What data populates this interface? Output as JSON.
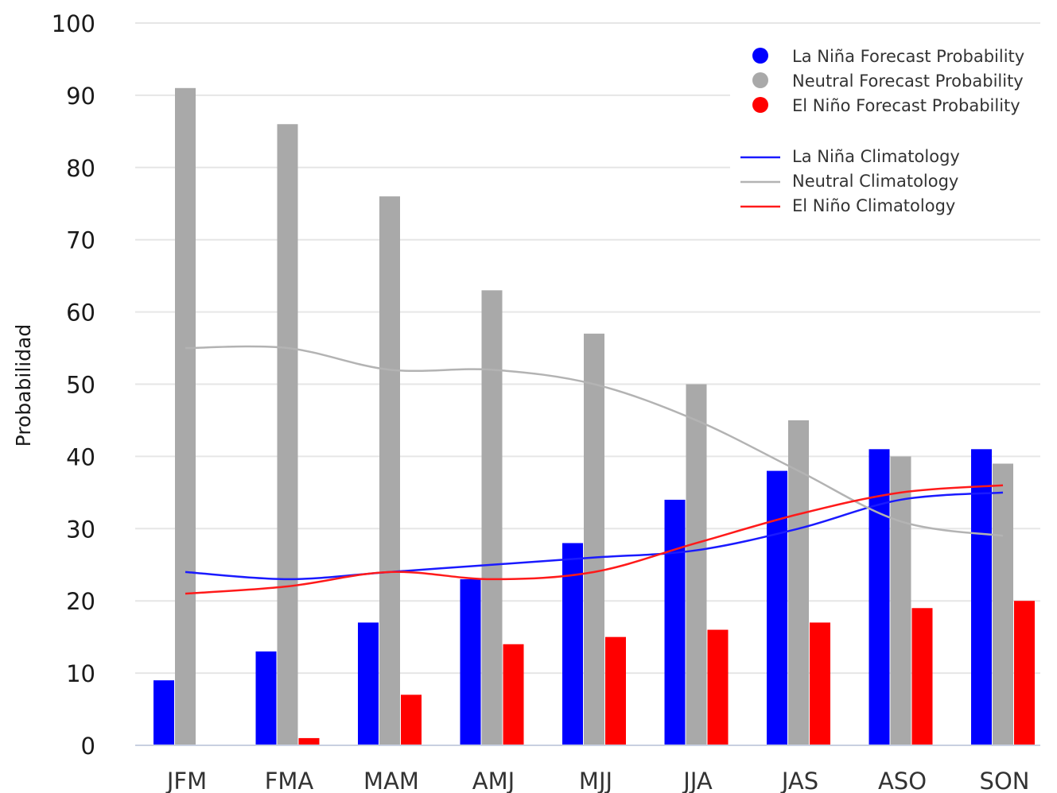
{
  "chart_data": {
    "type": "bar",
    "ylabel": "Probabilidad",
    "xlabel": "",
    "ylim": [
      0,
      100
    ],
    "yticks": [
      0,
      10,
      20,
      30,
      40,
      50,
      60,
      70,
      80,
      90,
      100
    ],
    "grid": true,
    "legend_position": "top-right",
    "categories": [
      "JFM",
      "FMA",
      "MAM",
      "AMJ",
      "MJJ",
      "JJA",
      "JAS",
      "ASO",
      "SON"
    ],
    "series": [
      {
        "name": "La Niña Forecast Probability",
        "kind": "bar",
        "color": "#0000ff",
        "values": [
          9,
          13,
          17,
          23,
          28,
          34,
          38,
          41,
          41
        ]
      },
      {
        "name": "Neutral Forecast Probability",
        "kind": "bar",
        "color": "#a9a9a9",
        "values": [
          91,
          86,
          76,
          63,
          57,
          50,
          45,
          40,
          39
        ]
      },
      {
        "name": "El Niño Forecast Probability",
        "kind": "bar",
        "color": "#ff0000",
        "values": [
          0,
          1,
          7,
          14,
          15,
          16,
          17,
          19,
          20
        ]
      },
      {
        "name": "La Niña Climatology",
        "kind": "line",
        "color": "#1a1aff",
        "values": [
          24,
          23,
          24,
          25,
          26,
          27,
          30,
          34,
          35
        ]
      },
      {
        "name": "Neutral Climatology",
        "kind": "line",
        "color": "#b3b3b3",
        "values": [
          55,
          55,
          52,
          52,
          50,
          45,
          38,
          31,
          29
        ]
      },
      {
        "name": "El Niño Climatology",
        "kind": "line",
        "color": "#ff1a1a",
        "values": [
          21,
          22,
          24,
          23,
          24,
          28,
          32,
          35,
          36
        ]
      }
    ]
  }
}
